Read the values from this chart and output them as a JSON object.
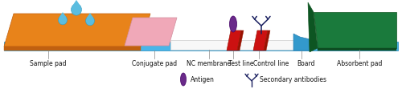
{
  "base_color": "#4ab5e8",
  "sample_pad_color": "#e8831a",
  "sample_pad_dark": "#c06010",
  "conjugate_pad_color": "#f0a8b8",
  "nc_membrane_color": "#f8f8f8",
  "nc_membrane_edge": "#cccccc",
  "test_line_color": "#cc1111",
  "test_line_dark": "#991100",
  "board_notch_color": "#3399cc",
  "absorbent_pad_color": "#1a7a3c",
  "absorbent_pad_dark": "#0d4d22",
  "drop_color": "#5bbde0",
  "drop_edge": "#3399bb",
  "antigen_color": "#6a2a8a",
  "antibody_color": "#1a2060",
  "label_color": "#111111",
  "tick_color": "#888888",
  "labels": {
    "sample_pad": "Sample pad",
    "conjugate_pad": "Conjugate pad",
    "nc_membrane": "NC membrane",
    "test_line": "Test line",
    "control_line": "Control line",
    "board": "Board",
    "absorbent_pad": "Absorbent pad",
    "antigen": "Antigen",
    "secondary_antibodies": "Secondary antibodies"
  }
}
